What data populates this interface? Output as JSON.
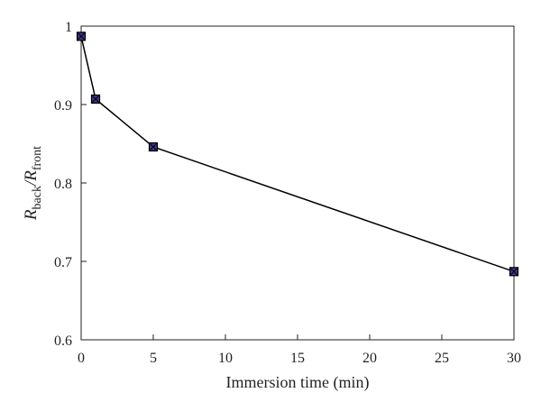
{
  "chart_data": {
    "type": "line",
    "title": "",
    "xlabel": "Immersion time (min)",
    "ylabel": {
      "prefix_symbol": "R",
      "prefix_sub": "back",
      "separator": "/",
      "suffix_symbol": "R",
      "suffix_sub": "front"
    },
    "xlim": [
      0,
      30
    ],
    "ylim": [
      0.6,
      1
    ],
    "xticks": [
      0,
      5,
      10,
      15,
      20,
      25,
      30
    ],
    "yticks": [
      0.6,
      0.7,
      0.8,
      0.9,
      1
    ],
    "ytick_labels": [
      "0.6",
      "0.7",
      "0.8",
      "0.9",
      "1"
    ],
    "grid": false,
    "legend": "none",
    "series": [
      {
        "x": [
          0,
          1,
          5,
          30
        ],
        "y": [
          0.987,
          0.907,
          0.846,
          0.687
        ],
        "line_color": "#000000",
        "marker": "square-x",
        "marker_fill": "#3b3689"
      }
    ]
  }
}
